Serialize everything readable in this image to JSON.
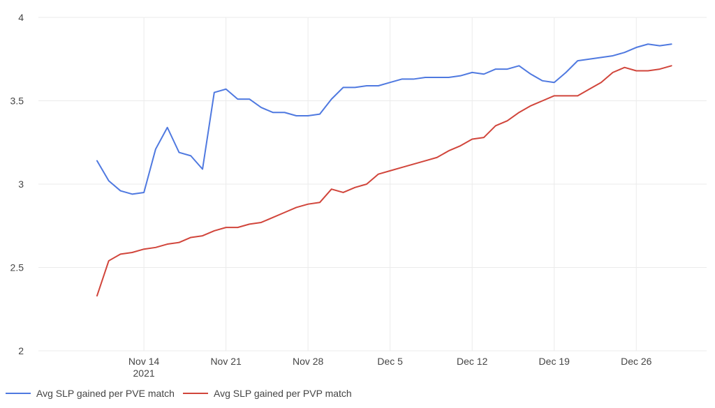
{
  "chart_data": {
    "type": "line",
    "title": "",
    "xlabel": "",
    "ylabel": "",
    "x_dates": [
      "2021-11-10",
      "2021-11-11",
      "2021-11-12",
      "2021-11-13",
      "2021-11-14",
      "2021-11-15",
      "2021-11-16",
      "2021-11-17",
      "2021-11-18",
      "2021-11-19",
      "2021-11-20",
      "2021-11-21",
      "2021-11-22",
      "2021-11-23",
      "2021-11-24",
      "2021-11-25",
      "2021-11-26",
      "2021-11-27",
      "2021-11-28",
      "2021-11-29",
      "2021-11-30",
      "2021-12-01",
      "2021-12-02",
      "2021-12-03",
      "2021-12-04",
      "2021-12-05",
      "2021-12-06",
      "2021-12-07",
      "2021-12-08",
      "2021-12-09",
      "2021-12-10",
      "2021-12-11",
      "2021-12-12",
      "2021-12-13",
      "2021-12-14",
      "2021-12-15",
      "2021-12-16",
      "2021-12-17",
      "2021-12-18",
      "2021-12-19",
      "2021-12-20",
      "2021-12-21",
      "2021-12-22",
      "2021-12-23",
      "2021-12-24",
      "2021-12-25",
      "2021-12-26",
      "2021-12-27",
      "2021-12-28",
      "2021-12-29"
    ],
    "series": [
      {
        "name": "Avg SLP gained per PVE match",
        "color": "#4f79e0",
        "values": [
          3.14,
          3.02,
          2.96,
          2.94,
          2.95,
          3.21,
          3.34,
          3.19,
          3.17,
          3.09,
          3.55,
          3.57,
          3.51,
          3.51,
          3.46,
          3.43,
          3.43,
          3.41,
          3.41,
          3.42,
          3.51,
          3.58,
          3.58,
          3.59,
          3.59,
          3.61,
          3.63,
          3.63,
          3.64,
          3.64,
          3.64,
          3.65,
          3.67,
          3.66,
          3.69,
          3.69,
          3.71,
          3.66,
          3.62,
          3.61,
          3.67,
          3.74,
          3.75,
          3.76,
          3.77,
          3.79,
          3.82,
          3.84,
          3.83,
          3.84
        ]
      },
      {
        "name": "Avg SLP gained per PVP match",
        "color": "#d1453b",
        "values": [
          2.33,
          2.54,
          2.58,
          2.59,
          2.61,
          2.62,
          2.64,
          2.65,
          2.68,
          2.69,
          2.72,
          2.74,
          2.74,
          2.76,
          2.77,
          2.8,
          2.83,
          2.86,
          2.88,
          2.89,
          2.97,
          2.95,
          2.98,
          3.0,
          3.06,
          3.08,
          3.1,
          3.12,
          3.14,
          3.16,
          3.2,
          3.23,
          3.27,
          3.28,
          3.35,
          3.38,
          3.43,
          3.47,
          3.5,
          3.53,
          3.53,
          3.53,
          3.57,
          3.61,
          3.67,
          3.7,
          3.68,
          3.68,
          3.69,
          3.71
        ]
      }
    ],
    "ylim": [
      2,
      4
    ],
    "y_ticks": [
      {
        "value": 2,
        "label": "2"
      },
      {
        "value": 2.5,
        "label": "2.5"
      },
      {
        "value": 3,
        "label": "3"
      },
      {
        "value": 3.5,
        "label": "3.5"
      },
      {
        "value": 4,
        "label": "4"
      }
    ],
    "x_ticks": [
      {
        "date": "2021-11-14",
        "label": "Nov 14",
        "sublabel": "2021"
      },
      {
        "date": "2021-11-21",
        "label": "Nov 21",
        "sublabel": ""
      },
      {
        "date": "2021-11-28",
        "label": "Nov 28",
        "sublabel": ""
      },
      {
        "date": "2021-12-05",
        "label": "Dec 5",
        "sublabel": ""
      },
      {
        "date": "2021-12-12",
        "label": "Dec 12",
        "sublabel": ""
      },
      {
        "date": "2021-12-19",
        "label": "Dec 19",
        "sublabel": ""
      },
      {
        "date": "2021-12-26",
        "label": "Dec 26",
        "sublabel": ""
      }
    ],
    "grid": true,
    "legend_position": "bottom-left"
  }
}
